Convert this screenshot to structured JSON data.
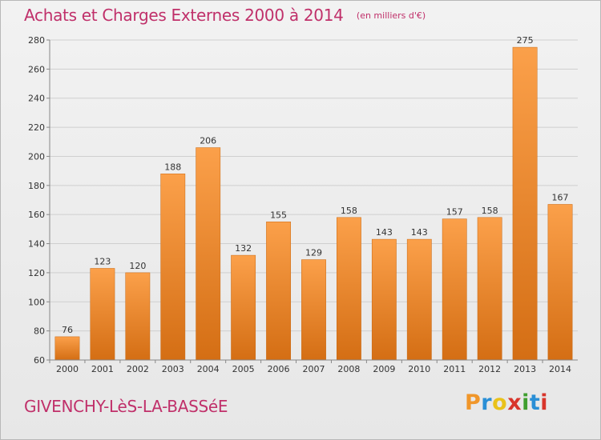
{
  "chart_data": {
    "type": "bar",
    "title": "Achats et Charges Externes 2000 à 2014",
    "subtitle": "(en milliers d'€)",
    "categories": [
      "2000",
      "2001",
      "2002",
      "2003",
      "2004",
      "2005",
      "2006",
      "2007",
      "2008",
      "2009",
      "2010",
      "2011",
      "2012",
      "2013",
      "2014"
    ],
    "values": [
      76,
      123,
      120,
      188,
      206,
      132,
      155,
      129,
      158,
      143,
      143,
      157,
      158,
      275,
      167
    ],
    "ylim": [
      60,
      280
    ],
    "yticks": [
      60,
      80,
      100,
      120,
      140,
      160,
      180,
      200,
      220,
      240,
      260,
      280
    ],
    "grid": true,
    "bar_color": "#f08a2c"
  },
  "footer": {
    "town": "GIVENCHY-LèS-LA-BASSéE",
    "logo_letters": [
      "P",
      "r",
      "o",
      "x",
      "i",
      "t",
      "i"
    ],
    "logo_colors": [
      "#f0962a",
      "#2a8fd6",
      "#e9c21a",
      "#d8352b",
      "#3f9e2f",
      "#2a8fd6",
      "#d8352b"
    ]
  }
}
